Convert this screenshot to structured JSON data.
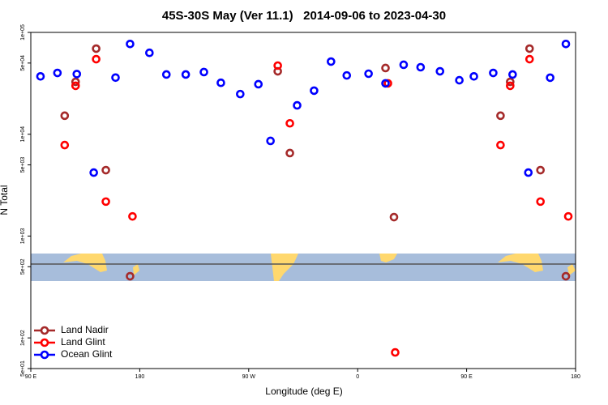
{
  "chart_data": {
    "type": "scatter",
    "title": "45S-30S May (Ver 11.1)   2014-09-06 to 2023-04-30",
    "xlabel": "Longitude (deg E)",
    "ylabel": "N Total",
    "xlim": [
      90,
      540
    ],
    "ylim": [
      50,
      100000
    ],
    "log_y": true,
    "legend": "lower left",
    "xticks": [
      {
        "value": 90,
        "label": "90 E"
      },
      {
        "value": 180,
        "label": "180"
      },
      {
        "value": 270,
        "label": "90 W"
      },
      {
        "value": 360,
        "label": "0"
      },
      {
        "value": 450,
        "label": "90 E"
      },
      {
        "value": 540,
        "label": "180"
      }
    ],
    "yticks": [
      {
        "value": 100000,
        "label": "1e+05"
      },
      {
        "value": 50000,
        "label": "5e+04"
      },
      {
        "value": 10000,
        "label": "1e+04"
      },
      {
        "value": 5000,
        "label": "5e+03"
      },
      {
        "value": 1000,
        "label": "1e+03"
      },
      {
        "value": 500,
        "label": "5e+02"
      },
      {
        "value": 100,
        "label": "1e+02"
      },
      {
        "value": 50,
        "label": "5e+01"
      }
    ],
    "series": [
      {
        "name": "Land Nadir",
        "color": "#a52a2a",
        "x": [
          118,
          127,
          144,
          152,
          172,
          294,
          304,
          383,
          390,
          478,
          486,
          502,
          511,
          532
        ],
        "values": [
          15200,
          32700,
          69300,
          4440,
          403,
          41500,
          6530,
          44700,
          1535,
          15200,
          32700,
          69300,
          4440,
          403
        ]
      },
      {
        "name": "Land Glint",
        "color": "#ff0000",
        "x": [
          118,
          127,
          144,
          152,
          174,
          294,
          304,
          385,
          391,
          478,
          486,
          502,
          511,
          534
        ],
        "values": [
          7830,
          29900,
          54600,
          2180,
          1560,
          47200,
          12800,
          31600,
          72,
          7830,
          29900,
          54600,
          2180,
          1560
        ]
      },
      {
        "name": "Ocean Glint",
        "color": "#0000ff",
        "x": [
          98,
          112,
          128,
          142,
          160,
          172,
          188,
          202,
          218,
          233,
          247,
          263,
          278,
          288,
          310,
          324,
          338,
          351,
          369,
          383,
          398,
          412,
          428,
          444,
          456,
          472,
          488,
          501,
          519,
          532
        ],
        "values": [
          37000,
          40000,
          39000,
          4200,
          36000,
          77000,
          63000,
          38600,
          38600,
          40800,
          32000,
          24800,
          31000,
          8600,
          19200,
          26800,
          51700,
          37800,
          39300,
          31600,
          48100,
          45500,
          41500,
          33900,
          37000,
          40000,
          38600,
          4200,
          35900,
          77000
        ]
      }
    ]
  }
}
